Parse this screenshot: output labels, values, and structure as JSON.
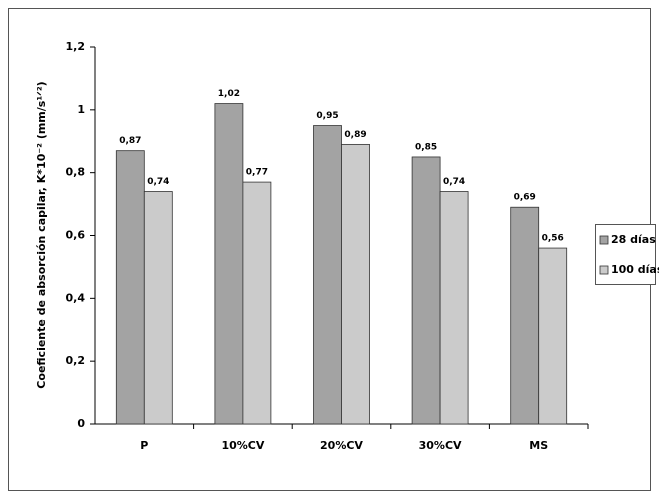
{
  "chart_data": {
    "type": "bar",
    "y_label": "Coeficiente de absorción capilar, K*10⁻² (mm/s¹ᐟ²)",
    "categories": [
      "P",
      "10%CV",
      "20%CV",
      "30%CV",
      "MS"
    ],
    "series": [
      {
        "name": "28 días",
        "color": "#a3a3a3",
        "values": [
          0.87,
          1.02,
          0.95,
          0.85,
          0.69
        ],
        "value_labels": [
          "0,87",
          "1,02",
          "0,95",
          "0,85",
          "0,69"
        ]
      },
      {
        "name": "100 días",
        "color": "#cbcbcb",
        "values": [
          0.74,
          0.77,
          0.89,
          0.74,
          0.56
        ],
        "value_labels": [
          "0,74",
          "0,77",
          "0,89",
          "0,74",
          "0,56"
        ]
      }
    ],
    "ylim": [
      0,
      1.2
    ],
    "yticks": [
      0,
      {
        "value": 0.2,
        "label": "0,2"
      },
      {
        "value": 0.4,
        "label": "0,4"
      },
      {
        "value": 0.6,
        "label": "0,6"
      },
      {
        "value": 0.8,
        "label": "0,8"
      },
      1,
      {
        "value": 1.2,
        "label": "1,2"
      }
    ],
    "grid": false,
    "legend": "right"
  }
}
